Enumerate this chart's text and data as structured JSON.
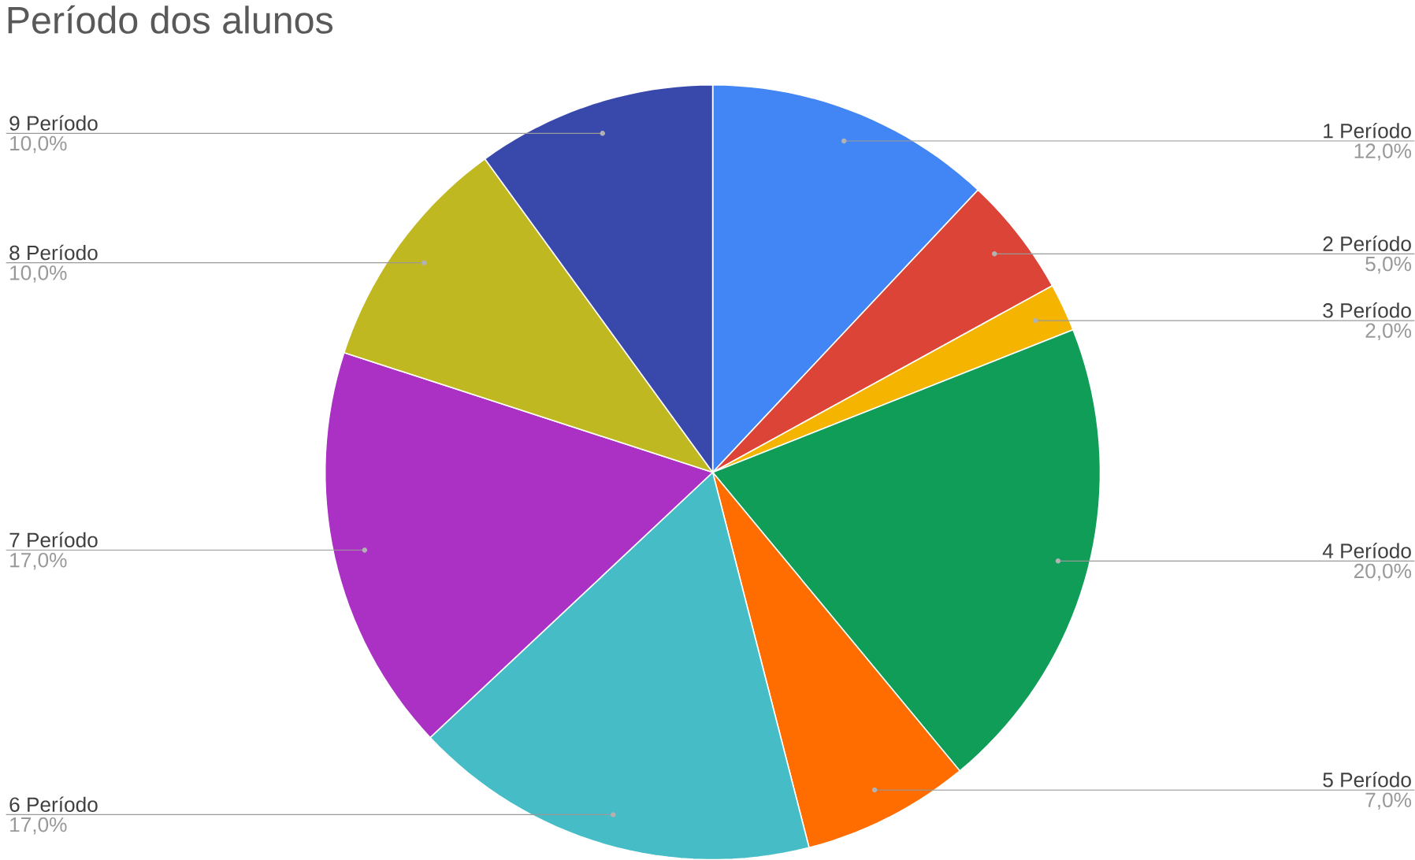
{
  "chart_data": {
    "type": "pie",
    "title": "Período dos alunos",
    "categories": [
      "1 Período",
      "2 Período",
      "3 Período",
      "4 Período",
      "5 Período",
      "6 Período",
      "7 Período",
      "8 Período",
      "9 Período"
    ],
    "values": [
      12,
      5,
      2,
      20,
      7,
      17,
      17,
      10,
      10
    ],
    "colors": [
      "#4285f4",
      "#db4437",
      "#f4b400",
      "#0f9d58",
      "#ff6d00",
      "#46bdc6",
      "#ab30c4",
      "#c0b820",
      "#3949ab"
    ],
    "value_labels": [
      "12,0%",
      "5,0%",
      "2,0%",
      "20,0%",
      "7,0%",
      "17,0%",
      "17,0%",
      "10,0%",
      "10,0%"
    ]
  }
}
